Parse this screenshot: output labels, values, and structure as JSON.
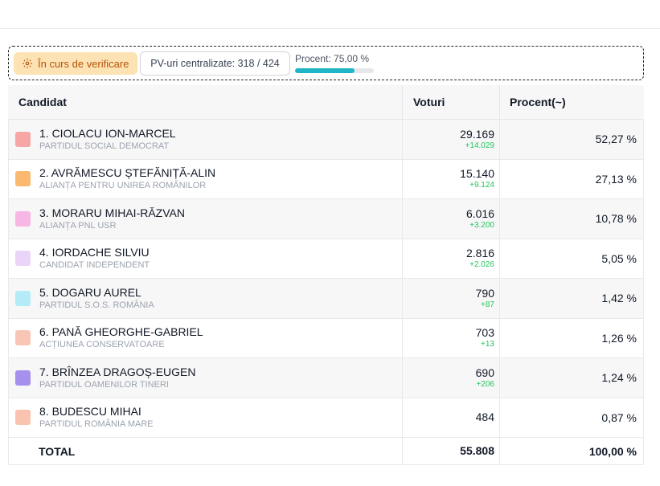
{
  "status": {
    "verify_label": "În curs de verificare",
    "pv_label": "PV-uri centralizate: 318 / 424",
    "progress_label": "Procent: 75,00 %",
    "progress_percent": 75
  },
  "table": {
    "headers": {
      "candidate": "Candidat",
      "votes": "Voturi",
      "percent": "Procent(~)"
    },
    "rows": [
      {
        "name": "1. CIOLACU ION-MARCEL",
        "party": "PARTIDUL SOCIAL DEMOCRAT",
        "votes": "29.169",
        "delta": "+14.029",
        "percent": "52,27 %",
        "color": "#f8a5a5"
      },
      {
        "name": "2. AVRĂMESCU ȘTEFĂNIȚĂ-ALIN",
        "party": "ALIANȚA PENTRU UNIREA ROMÂNILOR",
        "votes": "15.140",
        "delta": "+9.124",
        "percent": "27,13 %",
        "color": "#fbb86f"
      },
      {
        "name": "3. MORARU MIHAI-RĂZVAN",
        "party": "ALIANȚA PNL USR",
        "votes": "6.016",
        "delta": "+3.200",
        "percent": "10,78 %",
        "color": "#f7b6e3"
      },
      {
        "name": "4. IORDACHE SILVIU",
        "party": "CANDIDAT INDEPENDENT",
        "votes": "2.816",
        "delta": "+2.026",
        "percent": "5,05 %",
        "color": "#ead5f8"
      },
      {
        "name": "5. DOGARU AUREL",
        "party": "PARTIDUL S.O.S. ROMÂNIA",
        "votes": "790",
        "delta": "+87",
        "percent": "1,42 %",
        "color": "#b4ebf8"
      },
      {
        "name": "6. PANĂ GHEORGHE-GABRIEL",
        "party": "ACȚIUNEA CONSERVATOARE",
        "votes": "703",
        "delta": "+13",
        "percent": "1,26 %",
        "color": "#f9c6b6"
      },
      {
        "name": "7. BRÎNZEA DRAGOȘ-EUGEN",
        "party": "PARTIDUL OAMENILOR TINERI",
        "votes": "690",
        "delta": "+206",
        "percent": "1,24 %",
        "color": "#a590ee"
      },
      {
        "name": "8. BUDESCU MIHAI",
        "party": "PARTIDUL ROMÂNIA MARE",
        "votes": "484",
        "delta": "",
        "percent": "0,87 %",
        "color": "#f9c3b0"
      }
    ],
    "total": {
      "label": "TOTAL",
      "votes": "55.808",
      "percent": "100,00 %"
    }
  }
}
